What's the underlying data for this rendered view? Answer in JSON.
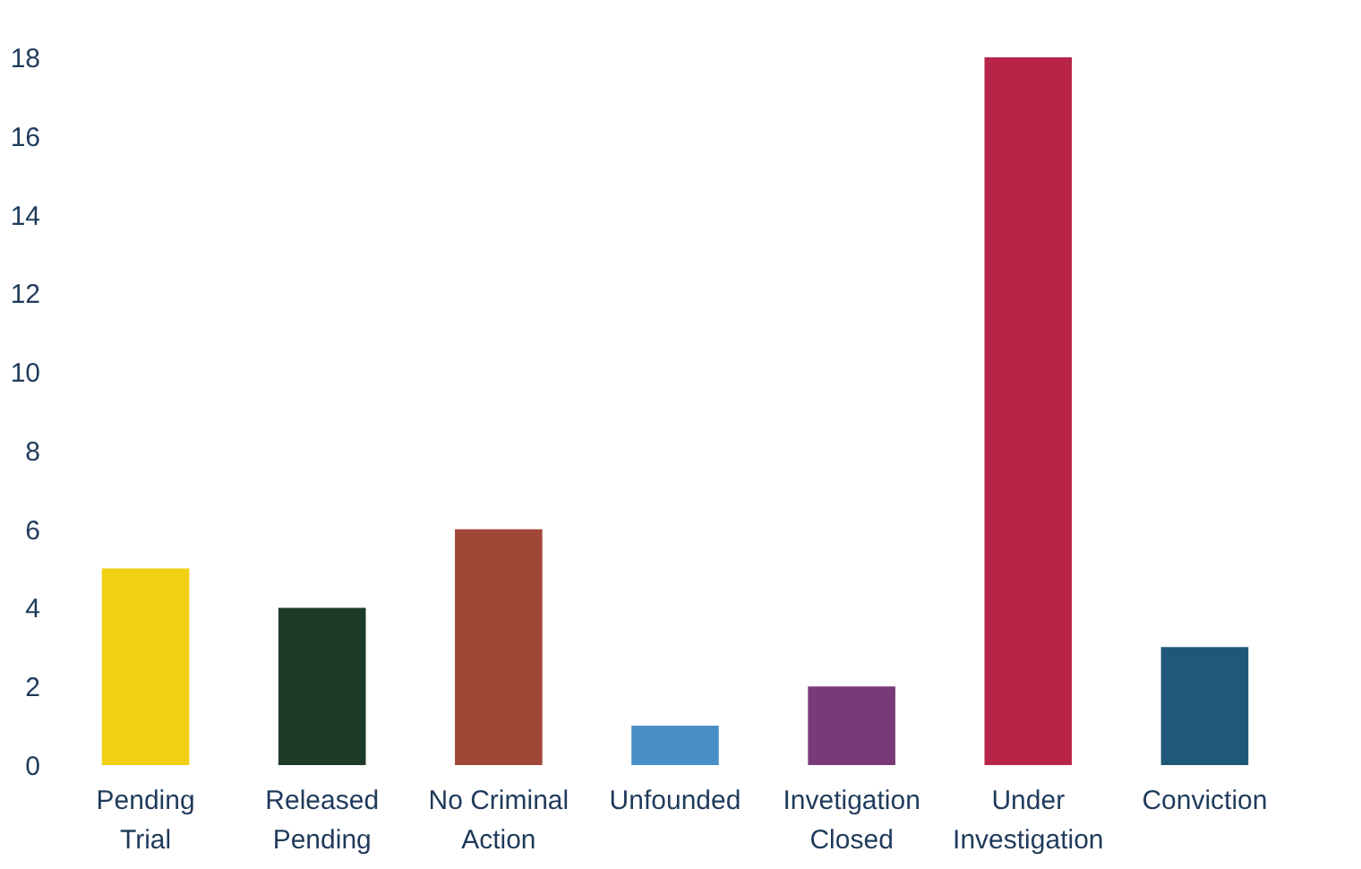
{
  "chart_data": {
    "type": "bar",
    "categories": [
      "Pending Trial",
      "Released Pending",
      "No Criminal Action",
      "Unfounded",
      "Invetigation Closed",
      "Under Investigation",
      "Conviction"
    ],
    "values": [
      5,
      4,
      6,
      1,
      2,
      18,
      3
    ],
    "colors": [
      "#f0d010",
      "#1e3a28",
      "#a04838",
      "#4a90c8",
      "#7a3a78",
      "#b82448",
      "#1f5878"
    ],
    "ylim": [
      0,
      18
    ],
    "yticks": [
      0,
      2,
      4,
      6,
      8,
      10,
      12,
      14,
      16,
      18
    ],
    "grid": false
  }
}
